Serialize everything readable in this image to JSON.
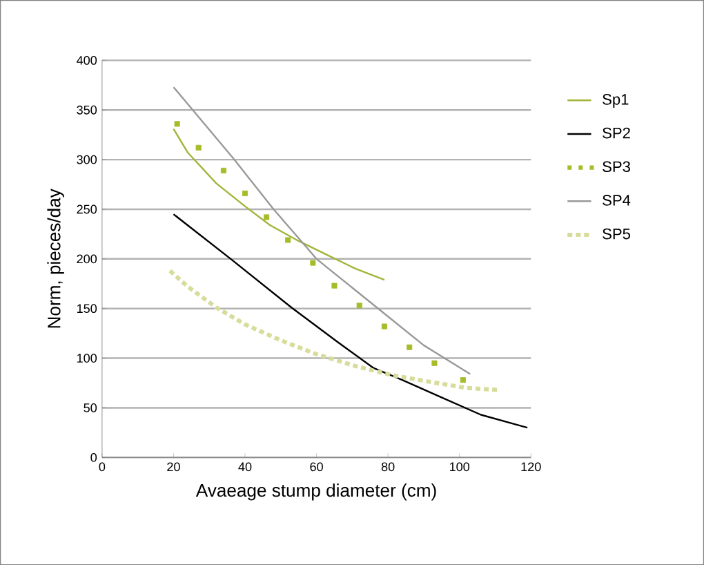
{
  "chart_data": {
    "type": "line",
    "xlabel": "Avaeage stump diameter (cm)",
    "ylabel": "Norm, pieces/day",
    "xlim": [
      0,
      120
    ],
    "xticks": [
      0,
      20,
      40,
      60,
      80,
      100,
      120
    ],
    "ylim": [
      0,
      400
    ],
    "yticks": [
      0,
      50,
      100,
      150,
      200,
      250,
      300,
      350,
      400
    ],
    "grid": "y",
    "legend": "right",
    "series": [
      {
        "name": "Sp1",
        "color": "#a3b43a",
        "line_style": "solid",
        "x": [
          20,
          24,
          32,
          40,
          47,
          55,
          63,
          71,
          79
        ],
        "values": [
          331,
          307,
          276,
          253,
          234,
          218,
          204,
          190,
          179
        ]
      },
      {
        "name": "SP2",
        "color": "#000000",
        "line_style": "solid",
        "x": [
          20,
          36,
          53,
          66,
          76,
          84,
          94,
          106,
          119
        ],
        "values": [
          245,
          200,
          151,
          116,
          90,
          78,
          62,
          43,
          30
        ]
      },
      {
        "name": "SP3",
        "color": "#a8bc2a",
        "type": "scatter",
        "marker": "square",
        "x": [
          21,
          27,
          34,
          40,
          46,
          52,
          59,
          65,
          72,
          79,
          86,
          93,
          101
        ],
        "values": [
          336,
          312,
          289,
          266,
          242,
          219,
          196,
          173,
          153,
          132,
          111,
          95,
          78
        ]
      },
      {
        "name": "SP4",
        "color": "#999999",
        "line_style": "solid",
        "x": [
          20,
          37,
          48,
          60,
          80,
          90,
          103
        ],
        "values": [
          373,
          300,
          250,
          200,
          142,
          113,
          84
        ]
      },
      {
        "name": "SP5",
        "color": "#d7dc9a",
        "line_style": "dotted",
        "x": [
          19,
          24,
          32,
          40,
          50,
          60,
          71,
          81,
          92,
          102,
          111
        ],
        "values": [
          188,
          172,
          151,
          134,
          118,
          104,
          92,
          83,
          76,
          70,
          68
        ]
      }
    ]
  }
}
